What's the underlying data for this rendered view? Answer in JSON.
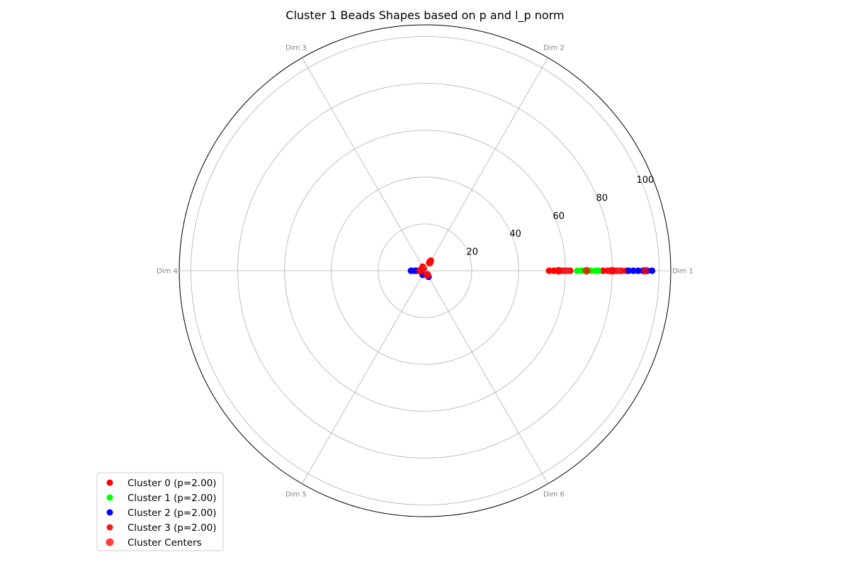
{
  "chart_data": {
    "type": "scatter",
    "projection": "polar",
    "title": "Cluster 1 Beads Shapes based on p and l_p norm",
    "dimensions": [
      "Dim 1",
      "Dim 2",
      "Dim 3",
      "Dim 4",
      "Dim 5",
      "Dim 6"
    ],
    "rlim": [
      0,
      105
    ],
    "rticks": [
      20,
      40,
      60,
      80,
      100
    ],
    "grid": true,
    "legend_position": "lower-left",
    "series": [
      {
        "name": "Cluster 0 (p=2.00)",
        "color": "#ff0000",
        "points": [
          {
            "dim": 1,
            "r": 53
          },
          {
            "dim": 1,
            "r": 55
          },
          {
            "dim": 1,
            "r": 57
          },
          {
            "dim": 1,
            "r": 58
          },
          {
            "dim": 1,
            "r": 60
          },
          {
            "dim": 1,
            "r": 62
          },
          {
            "dim": 1,
            "r": 76
          },
          {
            "dim": 1,
            "r": 78
          },
          {
            "dim": 1,
            "r": 80
          },
          {
            "dim": 1,
            "r": 82
          },
          {
            "dim": 1,
            "r": 84
          },
          {
            "dim": 1,
            "r": 86
          },
          {
            "dim": 2,
            "r": 4
          },
          {
            "dim": 2,
            "r": 5
          },
          {
            "dim": 3,
            "r": 2
          },
          {
            "dim": 4,
            "r": 3
          },
          {
            "dim": 4,
            "r": 5
          },
          {
            "dim": 6,
            "r": 2
          }
        ]
      },
      {
        "name": "Cluster 1 (p=2.00)",
        "color": "#00ff00",
        "points": [
          {
            "dim": 1,
            "r": 65
          },
          {
            "dim": 1,
            "r": 67
          },
          {
            "dim": 1,
            "r": 69
          },
          {
            "dim": 1,
            "r": 71
          },
          {
            "dim": 1,
            "r": 73
          },
          {
            "dim": 1,
            "r": 74
          },
          {
            "dim": 2,
            "r": 4
          }
        ]
      },
      {
        "name": "Cluster 2 (p=2.00)",
        "color": "#0000ff",
        "points": [
          {
            "dim": 1,
            "r": 87
          },
          {
            "dim": 1,
            "r": 89
          },
          {
            "dim": 1,
            "r": 91
          },
          {
            "dim": 1,
            "r": 93
          },
          {
            "dim": 1,
            "r": 95
          },
          {
            "dim": 1,
            "r": 97
          },
          {
            "dim": 4,
            "r": 6
          },
          {
            "dim": 4,
            "r": 4
          },
          {
            "dim": 5,
            "r": 2
          },
          {
            "dim": 6,
            "r": 3
          }
        ]
      },
      {
        "name": "Cluster 3 (p=2.00)",
        "color": "#ee1c25",
        "points": [
          {
            "dim": 1,
            "r": 59
          },
          {
            "dim": 1,
            "r": 61
          },
          {
            "dim": 1,
            "r": 79
          },
          {
            "dim": 1,
            "r": 81
          },
          {
            "dim": 1,
            "r": 83
          },
          {
            "dim": 2,
            "r": 4
          },
          {
            "dim": 3,
            "r": 1
          },
          {
            "dim": 4,
            "r": 2
          },
          {
            "dim": 6,
            "r": 2
          }
        ]
      }
    ],
    "centers": {
      "name": "Cluster Centers",
      "color": "#ff0000",
      "alpha": 0.75,
      "points": [
        {
          "dim": 1,
          "r": 57
        },
        {
          "dim": 1,
          "r": 69
        },
        {
          "dim": 1,
          "r": 94
        },
        {
          "dim": 1,
          "r": 80
        },
        {
          "dim": 2,
          "r": 4
        },
        {
          "dim": 4,
          "r": 2
        },
        {
          "dim": 6,
          "r": 2
        }
      ]
    }
  }
}
